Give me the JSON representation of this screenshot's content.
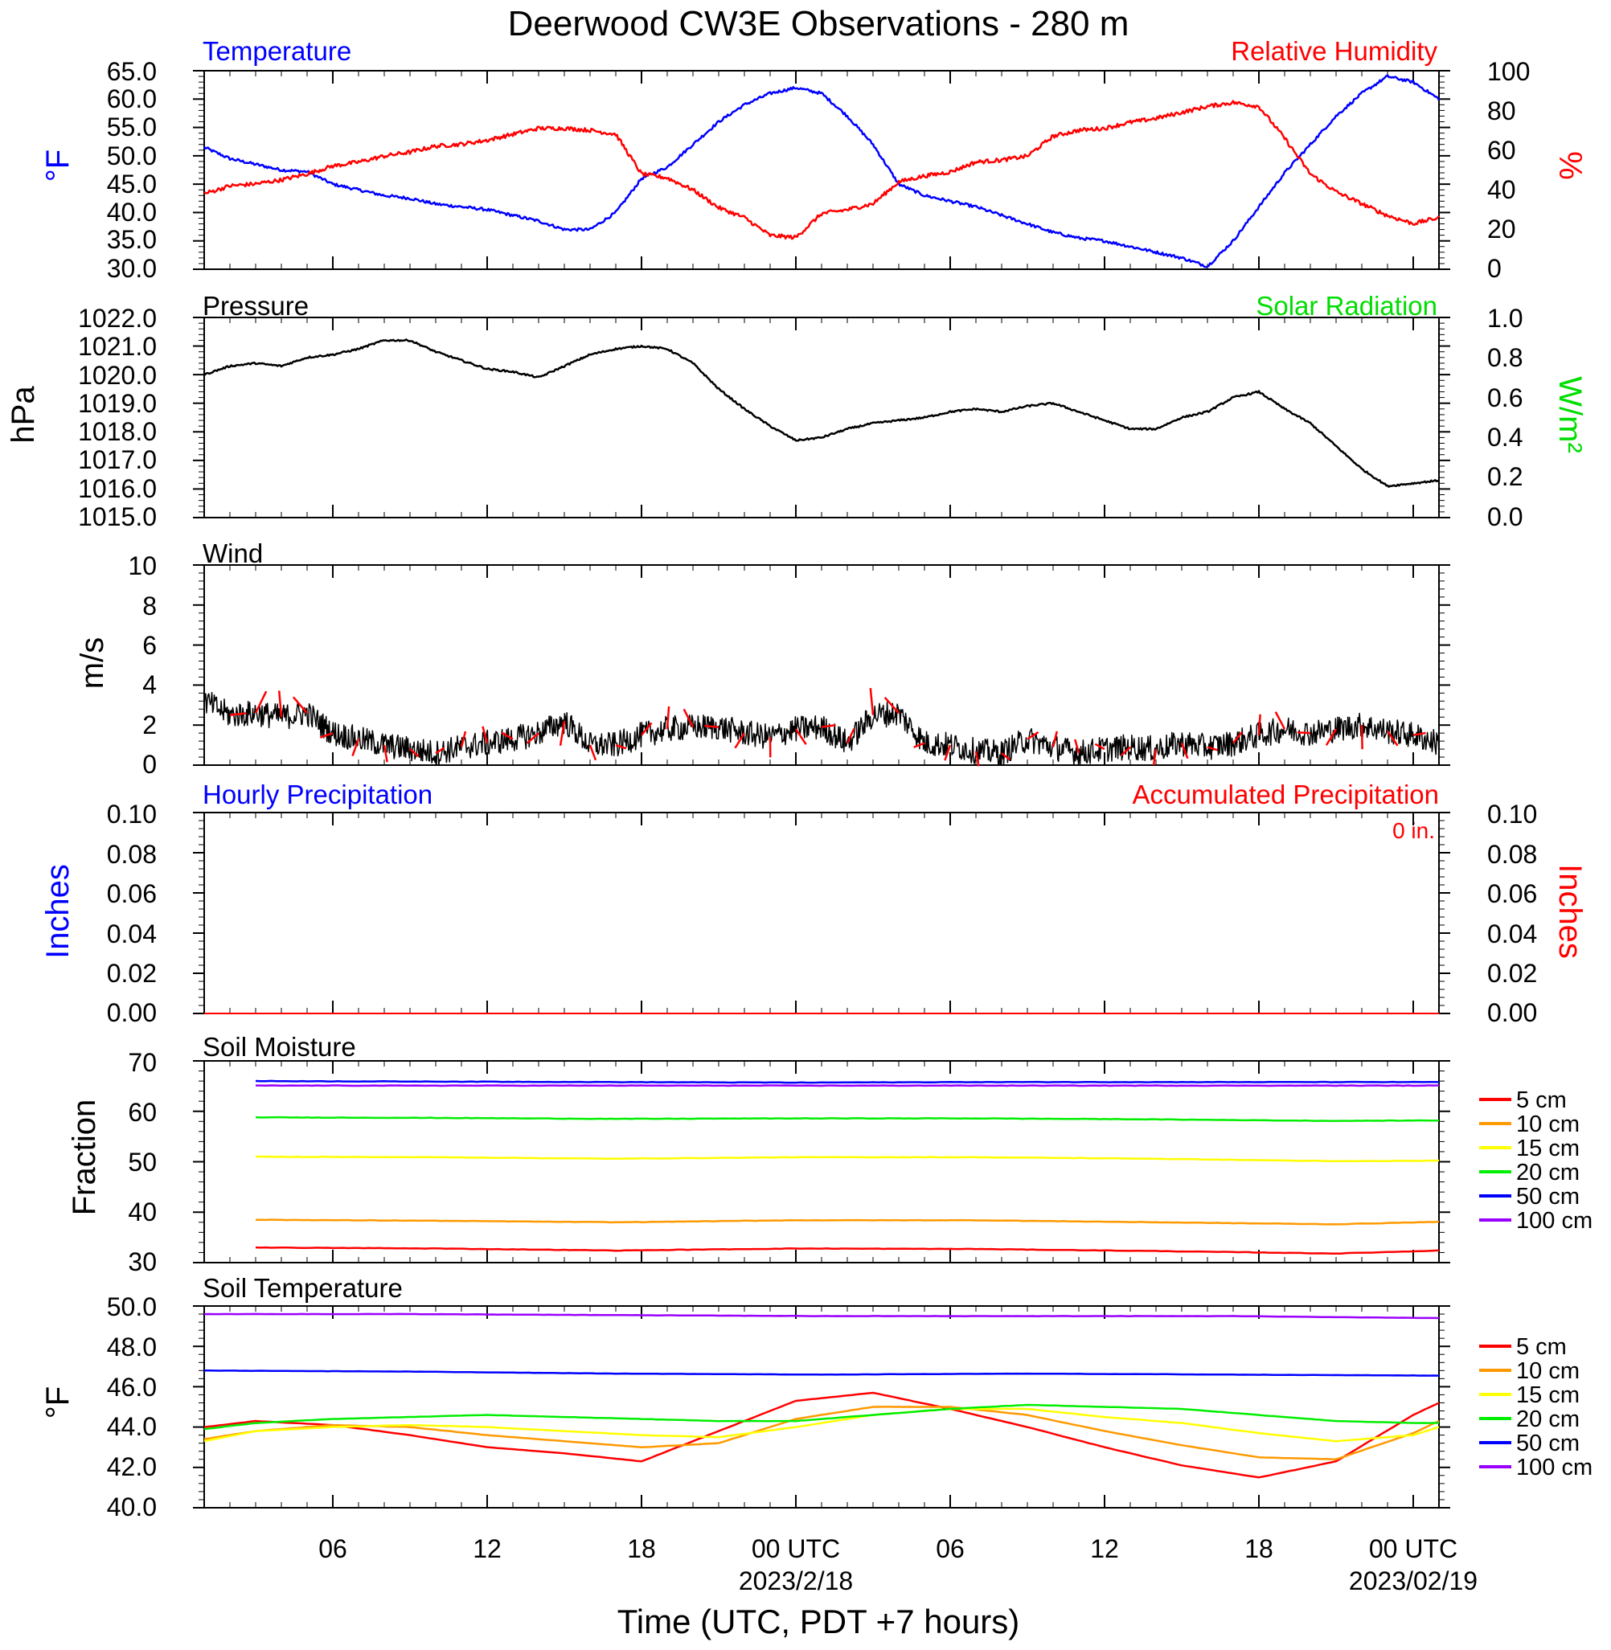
{
  "title": "Deerwood CW3E Observations - 280 m",
  "xlabel": "Time (UTC, PDT +7 hours)",
  "x_ticks": [
    {
      "hour": 6,
      "label": "06",
      "sub": ""
    },
    {
      "hour": 12,
      "label": "12",
      "sub": ""
    },
    {
      "hour": 18,
      "label": "18",
      "sub": ""
    },
    {
      "hour": 24,
      "label": "00 UTC",
      "sub": "2023/2/18"
    },
    {
      "hour": 30,
      "label": "06",
      "sub": ""
    },
    {
      "hour": 36,
      "label": "12",
      "sub": ""
    },
    {
      "hour": 42,
      "label": "18",
      "sub": ""
    },
    {
      "hour": 48,
      "label": "00 UTC",
      "sub": "2023/02/19"
    }
  ],
  "panels": {
    "temperature": {
      "left_title": "Temperature",
      "right_title": "Relative Humidity",
      "left_unit": "°F",
      "right_unit": "%",
      "left_color": "#0000ff",
      "right_color": "#ff0000",
      "left_ticks": [
        "65.0",
        "60.0",
        "55.0",
        "50.0",
        "45.0",
        "40.0",
        "35.0",
        "30.0"
      ],
      "right_ticks": [
        "100",
        "80",
        "60",
        "40",
        "20",
        "0"
      ]
    },
    "pressure": {
      "left_title": "Pressure",
      "right_title": "Solar Radiation",
      "left_unit": "hPa",
      "right_unit": "W/m²",
      "right_color": "#00dd00",
      "left_ticks": [
        "1022.0",
        "1021.0",
        "1020.0",
        "1019.0",
        "1018.0",
        "1017.0",
        "1016.0",
        "1015.0"
      ],
      "right_ticks": [
        "1.0",
        "0.8",
        "0.6",
        "0.4",
        "0.2",
        "0.0"
      ]
    },
    "wind": {
      "left_title": "Wind",
      "left_unit": "m/s",
      "left_ticks": [
        "10",
        "8",
        "6",
        "4",
        "2",
        "0"
      ]
    },
    "precip": {
      "left_title": "Hourly Precipitation",
      "right_title": "Accumulated Precipitation",
      "left_unit": "Inches",
      "right_unit": "Inches",
      "total": "0 in.",
      "left_color": "#0000ff",
      "right_color": "#ff0000",
      "left_ticks": [
        "0.10",
        "0.08",
        "0.06",
        "0.04",
        "0.02",
        "0.00"
      ],
      "right_ticks": [
        "0.10",
        "0.08",
        "0.06",
        "0.04",
        "0.02",
        "0.00"
      ]
    },
    "soil_moisture": {
      "left_title": "Soil Moisture",
      "left_unit": "Fraction",
      "left_ticks": [
        "70",
        "60",
        "50",
        "40",
        "30"
      ]
    },
    "soil_temperature": {
      "left_title": "Soil Temperature",
      "left_unit": "°F",
      "left_ticks": [
        "50.0",
        "48.0",
        "46.0",
        "44.0",
        "42.0",
        "40.0"
      ]
    }
  },
  "legend": {
    "labels": [
      "5 cm",
      "10 cm",
      "15 cm",
      "20 cm",
      "50 cm",
      "100 cm"
    ],
    "colors": [
      "#ff0000",
      "#ff9900",
      "#ffff00",
      "#00ee00",
      "#0000ff",
      "#9900ff"
    ]
  },
  "chart_data": [
    {
      "type": "line",
      "title": "Temperature / Relative Humidity",
      "xlim": [
        1,
        49
      ],
      "ylim": [
        30,
        65
      ],
      "y2lim": [
        0,
        100
      ],
      "series": [
        {
          "name": "Temperature",
          "axis": "left",
          "color": "#0000ff",
          "x": [
            1,
            2,
            3,
            4,
            5,
            6,
            7,
            8,
            9,
            10,
            11,
            12,
            13,
            14,
            15,
            16,
            17,
            18,
            19,
            20,
            21,
            22,
            23,
            24,
            25,
            26,
            27,
            28,
            29,
            30,
            31,
            32,
            33,
            34,
            35,
            36,
            37,
            38,
            39,
            40,
            41,
            42,
            43,
            44,
            45,
            46,
            47,
            48,
            49
          ],
          "y": [
            51.5,
            49.5,
            48.5,
            47.5,
            47.2,
            45,
            44,
            43,
            42.5,
            41.5,
            41,
            40.5,
            39.5,
            38.5,
            37,
            37,
            40,
            46,
            48,
            52,
            56,
            59,
            61,
            62,
            61,
            57,
            52,
            45,
            43,
            42,
            41,
            39.5,
            38,
            36.5,
            35.5,
            35,
            34,
            33,
            32,
            30.5,
            35,
            41,
            47,
            52,
            57,
            61,
            64,
            63,
            60
          ]
        },
        {
          "name": "Relative Humidity",
          "axis": "right",
          "color": "#ff0000",
          "x": [
            1,
            2,
            3,
            4,
            5,
            6,
            7,
            8,
            9,
            10,
            11,
            12,
            13,
            14,
            15,
            16,
            17,
            18,
            19,
            20,
            21,
            22,
            23,
            24,
            25,
            26,
            27,
            28,
            29,
            30,
            31,
            32,
            33,
            34,
            35,
            36,
            37,
            38,
            39,
            40,
            41,
            42,
            43,
            44,
            45,
            46,
            47,
            48,
            49
          ],
          "y": [
            38,
            42,
            43,
            45,
            48,
            52,
            54,
            57,
            59,
            62,
            63,
            65,
            68,
            71,
            71,
            70,
            68,
            48,
            46,
            40,
            31,
            26,
            17,
            16,
            28,
            30,
            33,
            44,
            47,
            49,
            54,
            55,
            57,
            67,
            70,
            71,
            74,
            76,
            79,
            82,
            84,
            82,
            66,
            48,
            39,
            33,
            27,
            23,
            26
          ]
        }
      ]
    },
    {
      "type": "line",
      "title": "Pressure / Solar Radiation",
      "xlim": [
        1,
        49
      ],
      "ylim": [
        1015,
        1022
      ],
      "y2lim": [
        0,
        1
      ],
      "series": [
        {
          "name": "Pressure",
          "axis": "left",
          "color": "#000000",
          "x": [
            1,
            2,
            3,
            4,
            5,
            6,
            7,
            8,
            9,
            10,
            11,
            12,
            13,
            14,
            15,
            16,
            17,
            18,
            19,
            20,
            21,
            22,
            23,
            24,
            25,
            26,
            27,
            28,
            29,
            30,
            31,
            32,
            33,
            34,
            35,
            36,
            37,
            38,
            39,
            40,
            41,
            42,
            43,
            44,
            45,
            46,
            47,
            48,
            49
          ],
          "y": [
            1020,
            1020.3,
            1020.4,
            1020.3,
            1020.6,
            1020.7,
            1020.9,
            1021.2,
            1021.2,
            1020.8,
            1020.5,
            1020.2,
            1020.1,
            1019.9,
            1020.3,
            1020.7,
            1020.9,
            1021,
            1020.9,
            1020.4,
            1019.5,
            1018.8,
            1018.2,
            1017.7,
            1017.8,
            1018.1,
            1018.3,
            1018.4,
            1018.5,
            1018.7,
            1018.8,
            1018.7,
            1018.9,
            1019,
            1018.7,
            1018.4,
            1018.1,
            1018.1,
            1018.5,
            1018.7,
            1019.2,
            1019.4,
            1018.8,
            1018.3,
            1017.5,
            1016.7,
            1016.1,
            1016.2,
            1016.3
          ]
        }
      ]
    },
    {
      "type": "line",
      "title": "Wind",
      "xlim": [
        1,
        49
      ],
      "ylim": [
        0,
        10
      ],
      "series": [
        {
          "name": "Wind",
          "color": "#000000",
          "x": [
            1,
            2,
            3,
            4,
            5,
            6,
            7,
            8,
            9,
            10,
            11,
            12,
            13,
            14,
            15,
            16,
            17,
            18,
            19,
            20,
            21,
            22,
            23,
            24,
            25,
            26,
            27,
            28,
            29,
            30,
            31,
            32,
            33,
            34,
            35,
            36,
            37,
            38,
            39,
            40,
            41,
            42,
            43,
            44,
            45,
            46,
            47,
            48,
            49
          ],
          "y": [
            3.2,
            2.5,
            2.6,
            2.4,
            2.6,
            1.6,
            1.3,
            1,
            0.8,
            0.6,
            0.9,
            1.1,
            1.3,
            1.6,
            2.2,
            1.0,
            1.0,
            1.5,
            1.8,
            1.9,
            1.9,
            1.6,
            1.4,
            1.8,
            1.9,
            1.1,
            2.5,
            2.6,
            1.1,
            1.0,
            0.7,
            0.6,
            1.3,
            0.9,
            0.6,
            0.8,
            0.9,
            0.8,
            1.1,
            0.9,
            1.1,
            1.5,
            1.8,
            1.6,
            1.8,
            2.0,
            1.7,
            1.5,
            1.1
          ]
        }
      ]
    },
    {
      "type": "line",
      "title": "Hourly Precipitation / Accumulated Precipitation",
      "xlim": [
        1,
        49
      ],
      "ylim": [
        0,
        0.1
      ],
      "series": [
        {
          "name": "Hourly Precipitation",
          "color": "#0000ff",
          "x": [
            1,
            49
          ],
          "y": [
            0,
            0
          ]
        },
        {
          "name": "Accumulated Precipitation",
          "color": "#ff0000",
          "x": [
            1,
            49
          ],
          "y": [
            0,
            0
          ]
        }
      ]
    },
    {
      "type": "line",
      "title": "Soil Moisture",
      "xlim": [
        1,
        49
      ],
      "ylim": [
        30,
        70
      ],
      "x": [
        3,
        10,
        17,
        24,
        31,
        38,
        45,
        49
      ],
      "series": [
        {
          "name": "5 cm",
          "color": "#ff0000",
          "y": [
            33,
            32.8,
            32.4,
            32.8,
            32.7,
            32.3,
            31.8,
            32.4
          ]
        },
        {
          "name": "10 cm",
          "color": "#ff9900",
          "y": [
            38.5,
            38.3,
            38,
            38.4,
            38.4,
            38,
            37.6,
            38.1
          ]
        },
        {
          "name": "15 cm",
          "color": "#ffff00",
          "y": [
            51,
            50.9,
            50.6,
            50.9,
            50.9,
            50.6,
            50.1,
            50.2
          ]
        },
        {
          "name": "20 cm",
          "color": "#00ee00",
          "y": [
            58.8,
            58.7,
            58.5,
            58.6,
            58.6,
            58.4,
            58.1,
            58.2
          ]
        },
        {
          "name": "50 cm",
          "color": "#0000ff",
          "y": [
            66,
            65.9,
            65.8,
            65.7,
            65.8,
            65.8,
            65.8,
            65.8
          ]
        },
        {
          "name": "100 cm",
          "color": "#9900ff",
          "y": [
            65.1,
            65.1,
            65.1,
            65.1,
            65.1,
            65.1,
            65.1,
            65.1
          ]
        }
      ]
    },
    {
      "type": "line",
      "title": "Soil Temperature",
      "xlim": [
        1,
        49
      ],
      "ylim": [
        40,
        50
      ],
      "series": [
        {
          "name": "5 cm",
          "color": "#ff0000",
          "x": [
            1,
            3,
            6,
            9,
            12,
            15,
            18,
            21,
            24,
            27,
            30,
            33,
            36,
            39,
            42,
            45,
            48,
            49
          ],
          "y": [
            44,
            44.3,
            44.1,
            43.6,
            43,
            42.7,
            42.3,
            43.8,
            45.3,
            45.7,
            44.9,
            44,
            43,
            42.1,
            41.5,
            42.3,
            44.6,
            45.2
          ]
        },
        {
          "name": "10 cm",
          "color": "#ff9900",
          "x": [
            1,
            3,
            6,
            9,
            12,
            15,
            18,
            21,
            24,
            27,
            30,
            33,
            36,
            39,
            42,
            45,
            48,
            49
          ],
          "y": [
            43.4,
            43.8,
            44.1,
            44,
            43.6,
            43.3,
            43,
            43.2,
            44.4,
            45,
            45,
            44.6,
            43.8,
            43.1,
            42.5,
            42.4,
            43.7,
            44.3
          ]
        },
        {
          "name": "15 cm",
          "color": "#ffff00",
          "x": [
            1,
            3,
            6,
            9,
            12,
            15,
            18,
            21,
            24,
            27,
            30,
            33,
            36,
            39,
            42,
            45,
            48,
            49
          ],
          "y": [
            43.3,
            43.8,
            44,
            44.1,
            44,
            43.8,
            43.6,
            43.5,
            44,
            44.6,
            44.9,
            44.9,
            44.5,
            44.2,
            43.7,
            43.3,
            43.6,
            44
          ]
        },
        {
          "name": "20 cm",
          "color": "#00ee00",
          "x": [
            1,
            3,
            6,
            9,
            12,
            15,
            18,
            21,
            24,
            27,
            30,
            33,
            36,
            39,
            42,
            45,
            48,
            49
          ],
          "y": [
            43.9,
            44.2,
            44.4,
            44.5,
            44.6,
            44.5,
            44.4,
            44.3,
            44.3,
            44.6,
            44.9,
            45.1,
            45,
            44.9,
            44.6,
            44.3,
            44.2,
            44.2
          ]
        },
        {
          "name": "50 cm",
          "color": "#0000ff",
          "x": [
            1,
            9,
            17,
            25,
            33,
            41,
            49
          ],
          "y": [
            46.8,
            46.75,
            46.65,
            46.6,
            46.65,
            46.6,
            46.55
          ]
        },
        {
          "name": "100 cm",
          "color": "#9900ff",
          "x": [
            1,
            9,
            17,
            25,
            33,
            41,
            49
          ],
          "y": [
            49.6,
            49.6,
            49.55,
            49.5,
            49.5,
            49.5,
            49.4
          ]
        }
      ]
    }
  ]
}
